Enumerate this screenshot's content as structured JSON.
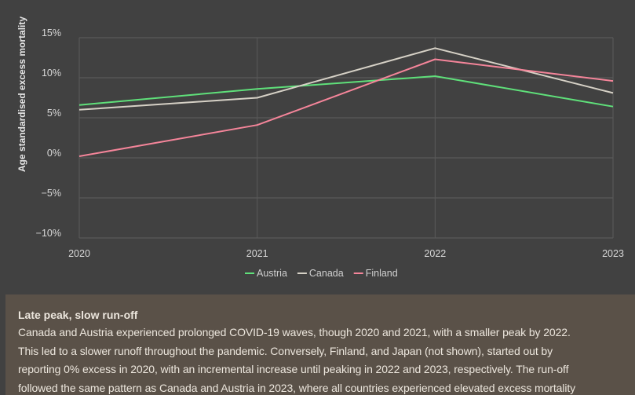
{
  "chart_data": {
    "type": "line",
    "title": "",
    "xlabel": "",
    "ylabel": "Age standardised excess mortality",
    "x": [
      "2020",
      "2021",
      "2022",
      "2023"
    ],
    "y_ticks": [
      15,
      10,
      5,
      0,
      -5,
      -10
    ],
    "y_tick_labels": [
      "15%",
      "10%",
      "5%",
      "0%",
      "−5%",
      "−10%"
    ],
    "ylim": [
      -10,
      15
    ],
    "grid": true,
    "legend_position": "bottom-center",
    "series": [
      {
        "name": "Austria",
        "color": "#5fe07a",
        "values": [
          6.6,
          8.6,
          10.2,
          6.4
        ]
      },
      {
        "name": "Canada",
        "color": "#d6d1c6",
        "values": [
          6.0,
          7.5,
          13.7,
          8.1
        ]
      },
      {
        "name": "Finland",
        "color": "#f5859a",
        "values": [
          0.2,
          4.1,
          12.3,
          9.6
        ]
      }
    ]
  },
  "note": {
    "title": "Late peak, slow run-off",
    "lines": [
      "Canada and Austria experienced prolonged COVID-19 waves, though 2020 and 2021, with a smaller peak by 2022.",
      "This led to a slower runoff throughout the pandemic. Conversely, Finland, and Japan (not shown), started out by",
      "reporting 0% excess in 2020, with an incremental increase until peaking in 2022 and 2023, respectively. The run-off",
      "followed the same pattern as Canada and Austria in 2023, where all countries experienced elevated excess mortality"
    ]
  }
}
